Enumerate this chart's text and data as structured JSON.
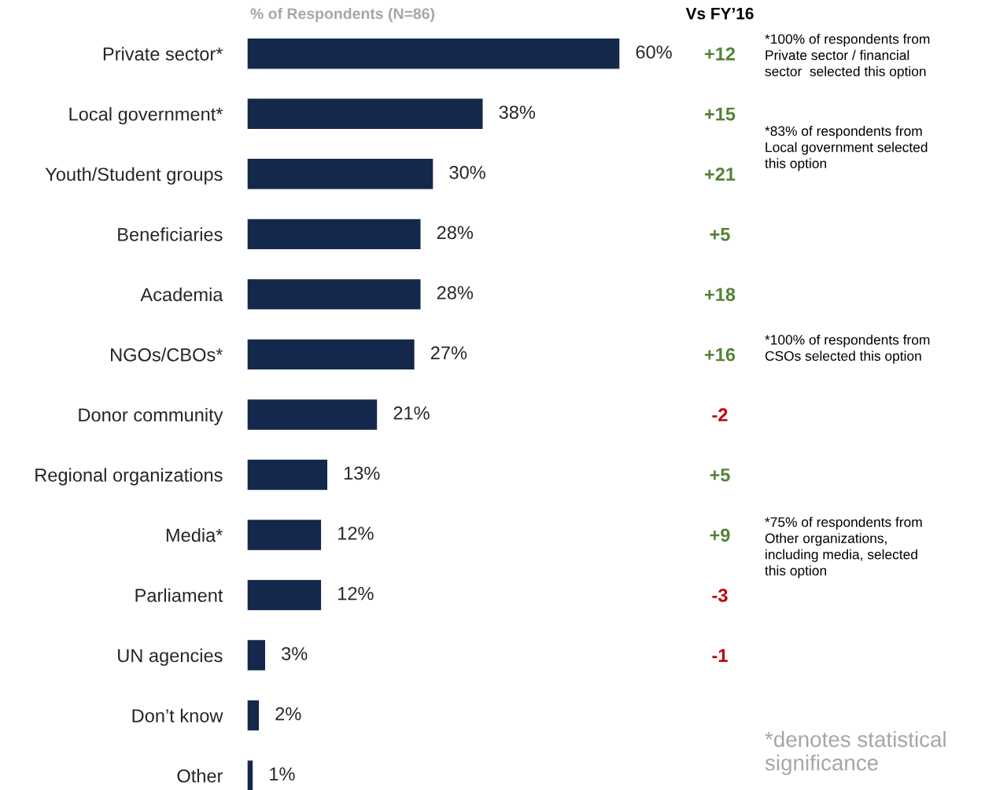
{
  "chart_data": {
    "type": "bar",
    "orientation": "horizontal",
    "title": "% of Respondents (N=86)",
    "subtitle": "Vs FY’16",
    "categories": [
      "Private sector*",
      "Local government*",
      "Youth/Student groups",
      "Beneficiaries",
      "Academia",
      "NGOs/CBOs*",
      "Donor community",
      "Regional organizations",
      "Media*",
      "Parliament",
      "UN agencies",
      "Don’t know",
      "Other"
    ],
    "series": [
      {
        "color": "#14284b",
        "values": [
          60,
          38,
          30,
          28,
          28,
          27,
          21,
          13,
          12,
          12,
          3,
          2,
          1
        ],
        "value_labels": [
          "60%",
          "38%",
          "30%",
          "28%",
          "28%",
          "27%",
          "21%",
          "13%",
          "12%",
          "12%",
          "3%",
          "2%",
          "1%"
        ]
      }
    ],
    "xlim": [
      0,
      60
    ],
    "tick_labels": "y",
    "grid": false,
    "legend": false,
    "annotations": [
      "+12",
      "+15",
      "+21",
      "+5",
      "+18",
      "+16",
      "-2",
      "+5",
      "+9",
      "-3",
      "-1",
      "*100% of respondents from\nPrivate sector / financial\nsector  selected this option",
      "*83% of respondents from\nLocal government selected\nthis option",
      "*100% of respondents from\nCSOs selected this option",
      "*75% of respondents from\nOther organizations,\nincluding media, selected\nthis option",
      "*denotes statistical significance"
    ]
  }
}
